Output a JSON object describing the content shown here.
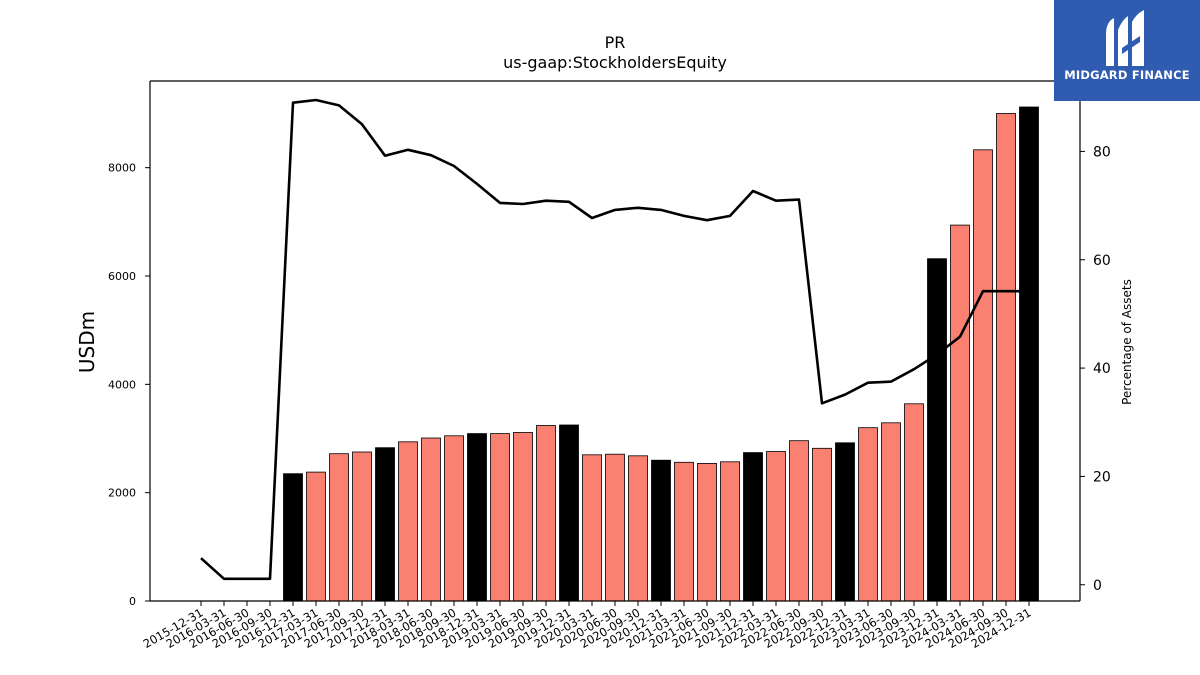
{
  "brand": {
    "name": "MIDGARD FINANCE",
    "bg_color": "#2f5bb0",
    "icon": "midgard-logo-icon"
  },
  "chart_data": {
    "type": "bar",
    "title": "PR",
    "subtitle": "us-gaap:StockholdersEquity",
    "ylabel": "USDm",
    "y2label": "Percentage of Assets",
    "ylim": [
      0,
      9600
    ],
    "y2lim": [
      -3,
      93
    ],
    "yticks": [
      "0",
      "2000",
      "4000",
      "6000",
      "8000"
    ],
    "y2ticks": [
      "0",
      "20",
      "40",
      "60",
      "80"
    ],
    "categories": [
      "2015-12-31",
      "2016-03-31",
      "2016-06-30",
      "2016-09-30",
      "2016-12-31",
      "2017-03-31",
      "2017-06-30",
      "2017-09-30",
      "2017-12-31",
      "2018-03-31",
      "2018-06-30",
      "2018-09-30",
      "2018-12-31",
      "2019-03-31",
      "2019-06-30",
      "2019-09-30",
      "2019-12-31",
      "2020-03-31",
      "2020-06-30",
      "2020-09-30",
      "2020-12-31",
      "2021-03-31",
      "2021-06-30",
      "2021-09-30",
      "2021-12-31",
      "2022-03-31",
      "2022-06-30",
      "2022-09-30",
      "2022-12-31",
      "2023-03-31",
      "2023-06-30",
      "2023-09-30",
      "2023-12-31",
      "2024-03-31",
      "2024-06-30",
      "2024-09-30",
      "2024-12-31"
    ],
    "series": [
      {
        "type": "bar",
        "values": [
          0,
          0,
          0,
          0,
          2350,
          2380,
          2720,
          2750,
          2830,
          2940,
          3010,
          3050,
          3090,
          3090,
          3110,
          3240,
          3250,
          2700,
          2710,
          2680,
          2600,
          2560,
          2540,
          2570,
          2740,
          2760,
          2960,
          2820,
          2920,
          3200,
          3290,
          3640,
          6320,
          6940,
          8330,
          9000,
          9120
        ],
        "annual_color": "#000000",
        "quarter_color": "#fa8072"
      },
      {
        "type": "line",
        "axis": "right",
        "values": [
          4.9,
          1.1,
          1.1,
          1.1,
          89,
          89.5,
          88.5,
          85,
          79.2,
          80.3,
          79.3,
          77.3,
          74,
          70.5,
          70.3,
          70.9,
          70.7,
          67.7,
          69.2,
          69.6,
          69.2,
          68.1,
          67.3,
          68.1,
          72.7,
          70.9,
          71.1,
          33.5,
          35.1,
          37.3,
          37.5,
          39.8,
          42.5,
          45.8,
          54.2,
          54.2,
          54.2
        ],
        "color": "#000000"
      }
    ]
  }
}
